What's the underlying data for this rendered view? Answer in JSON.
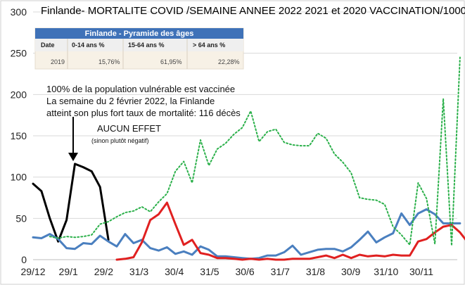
{
  "chart_data": {
    "type": "line",
    "title_parts": [
      {
        "text": "Finlande- MORTALITE COVID /SEMAINE ANNEE 2022 ",
        "color": "#1f3a93"
      },
      {
        "text": "2021",
        "color": "#4a7fbf"
      },
      {
        "text": " et ",
        "color": "#111111"
      },
      {
        "text": "2020",
        "color": "#e02020"
      },
      {
        "text": "  VACCINATION/1000",
        "color": "#2bb04a"
      }
    ],
    "ylim": [
      0,
      300
    ],
    "yticks": [
      "0",
      "50",
      "100",
      "150",
      "200",
      "250",
      "300"
    ],
    "grid": true,
    "x_tick_labels": [
      "29/12",
      "29/1",
      "29/2",
      "31/3",
      "30/4",
      "31/5",
      "30/6",
      "31/7",
      "31/8",
      "30/9",
      "31/10",
      "30/11"
    ],
    "series": [
      {
        "name": "2022",
        "color": "#000000",
        "values": [
          92,
          83,
          50,
          22,
          48,
          116,
          112,
          107,
          88,
          24
        ]
      },
      {
        "name": "2021",
        "color": "#4a7fbf",
        "values": [
          27,
          26,
          31,
          25,
          14,
          13,
          20,
          19,
          29,
          22,
          16,
          31,
          20,
          24,
          14,
          11,
          15,
          7,
          10,
          6,
          16,
          12,
          4,
          4,
          3,
          2,
          1,
          2,
          5,
          5,
          9,
          17,
          6,
          9,
          12,
          13,
          13,
          10,
          15,
          24,
          34,
          21,
          27,
          32,
          56,
          42,
          56,
          61,
          55,
          44,
          44,
          44
        ]
      },
      {
        "name": "2020",
        "color": "#e02020",
        "values": [
          null,
          null,
          null,
          null,
          null,
          null,
          null,
          null,
          null,
          null,
          0,
          1,
          3,
          21,
          48,
          55,
          69,
          43,
          18,
          24,
          8,
          6,
          2,
          2,
          1,
          0,
          1,
          0,
          1,
          0,
          0,
          1,
          1,
          1,
          3,
          5,
          2,
          6,
          2,
          6,
          4,
          5,
          4,
          6,
          5,
          5,
          22,
          25,
          33,
          40,
          42,
          33,
          20
        ]
      },
      {
        "name": "VACCINATION/1000",
        "color": "#2bb04a",
        "values": [
          null,
          null,
          28,
          26,
          28,
          27,
          28,
          30,
          43,
          46,
          52,
          57,
          59,
          64,
          58,
          70,
          80,
          107,
          119,
          93,
          145,
          114,
          134,
          141,
          152,
          160,
          180,
          143,
          155,
          158,
          142,
          139,
          138,
          138,
          153,
          147,
          128,
          118,
          105,
          75,
          73,
          72,
          67,
          40,
          30,
          18,
          93,
          74,
          19,
          195,
          17,
          245
        ]
      }
    ]
  },
  "inset_table": {
    "title": "Finlande - Pyramide des âges",
    "headers": [
      "Date",
      "0-14 ans %",
      "15-64 ans %",
      "> 64 ans %"
    ],
    "row": [
      "2019",
      "15,76%",
      "61,95%",
      "22,28%"
    ]
  },
  "annotations": {
    "line1": "100% de la population vulnérable est vaccinée",
    "line2": "La semaine du 2 février 2022, la Finlande",
    "line3": "atteint son plus fort taux de mortalité: 116 décès",
    "effect": "AUCUN EFFET",
    "effect_note": "(sinon plutôt négatif)"
  }
}
